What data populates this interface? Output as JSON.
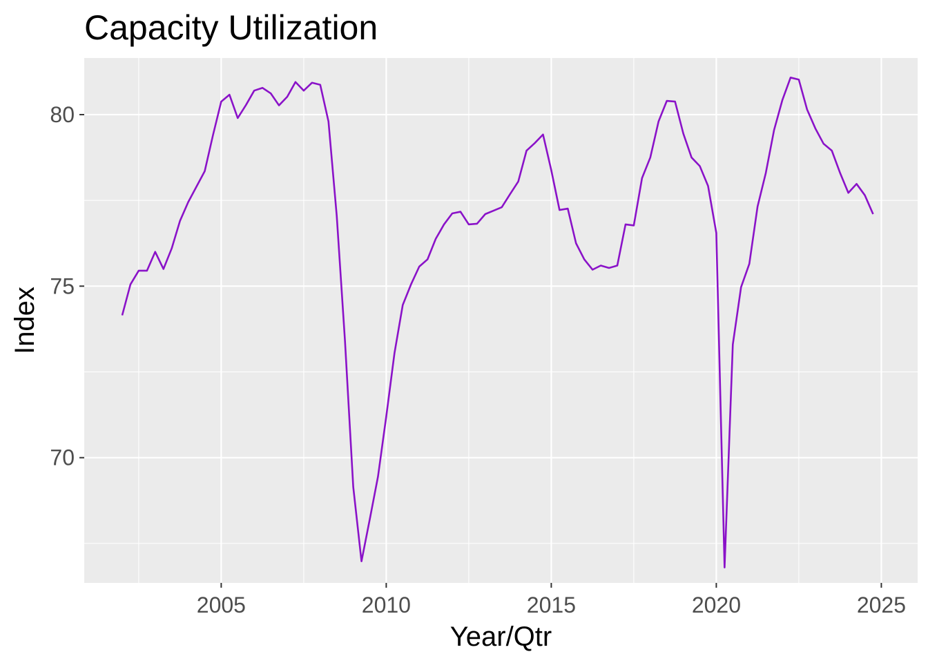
{
  "chart_data": {
    "type": "line",
    "title": "Capacity Utilization",
    "xlabel": "Year/Qtr",
    "ylabel": "Index",
    "xlim": [
      2000.85,
      2026.1
    ],
    "ylim": [
      66.35,
      81.65
    ],
    "x_ticks": [
      2005,
      2010,
      2015,
      2020,
      2025
    ],
    "x_tick_labels": [
      "2005",
      "2010",
      "2015",
      "2020",
      "2025"
    ],
    "y_ticks": [
      70,
      75,
      80
    ],
    "y_tick_labels": [
      "70",
      "75",
      "80"
    ],
    "grid": true,
    "legend": "none",
    "colors": {
      "line": "#8A12C8",
      "panel": "#EBEBEB",
      "grid": "#FFFFFF",
      "tick_label": "#4D4D4D",
      "tick_mark": "#333333"
    },
    "series": [
      {
        "x": [
          2002.0,
          2002.25,
          2002.5,
          2002.75,
          2003.0,
          2003.25,
          2003.5,
          2003.75,
          2004.0,
          2004.25,
          2004.5,
          2004.75,
          2005.0,
          2005.25,
          2005.5,
          2005.75,
          2006.0,
          2006.25,
          2006.5,
          2006.75,
          2007.0,
          2007.25,
          2007.5,
          2007.75,
          2008.0,
          2008.25,
          2008.5,
          2008.75,
          2009.0,
          2009.25,
          2009.5,
          2009.75,
          2010.0,
          2010.25,
          2010.5,
          2010.75,
          2011.0,
          2011.25,
          2011.5,
          2011.75,
          2012.0,
          2012.25,
          2012.5,
          2012.75,
          2013.0,
          2013.25,
          2013.5,
          2013.75,
          2014.0,
          2014.25,
          2014.5,
          2014.75,
          2015.0,
          2015.25,
          2015.5,
          2015.75,
          2016.0,
          2016.25,
          2016.5,
          2016.75,
          2017.0,
          2017.25,
          2017.5,
          2017.75,
          2018.0,
          2018.25,
          2018.5,
          2018.75,
          2019.0,
          2019.25,
          2019.5,
          2019.75,
          2020.0,
          2020.25,
          2020.5,
          2020.75,
          2021.0,
          2021.25,
          2021.5,
          2021.75,
          2022.0,
          2022.25,
          2022.5,
          2022.75,
          2023.0,
          2023.25,
          2023.5,
          2023.75,
          2024.0,
          2024.25,
          2024.5,
          2024.75
        ],
        "y": [
          74.15,
          75.05,
          75.45,
          75.45,
          76.0,
          75.5,
          76.1,
          76.9,
          77.45,
          77.9,
          78.35,
          79.4,
          80.38,
          80.58,
          79.9,
          80.28,
          80.7,
          80.78,
          80.62,
          80.27,
          80.52,
          80.95,
          80.7,
          80.93,
          80.87,
          79.8,
          77.05,
          73.4,
          69.15,
          66.98,
          68.2,
          69.45,
          71.2,
          73.05,
          74.45,
          75.05,
          75.57,
          75.78,
          76.38,
          76.8,
          77.12,
          77.17,
          76.8,
          76.82,
          77.1,
          77.2,
          77.3,
          77.68,
          78.05,
          78.95,
          79.17,
          79.42,
          78.38,
          77.22,
          77.26,
          76.25,
          75.78,
          75.48,
          75.6,
          75.53,
          75.6,
          76.8,
          76.77,
          78.15,
          78.75,
          79.8,
          80.4,
          80.38,
          79.45,
          78.75,
          78.5,
          77.92,
          76.55,
          66.8,
          73.3,
          74.97,
          75.65,
          77.32,
          78.3,
          79.55,
          80.42,
          81.08,
          81.02,
          80.15,
          79.6,
          79.15,
          78.95,
          78.3,
          77.72,
          77.98,
          77.65,
          77.1
        ]
      }
    ]
  }
}
